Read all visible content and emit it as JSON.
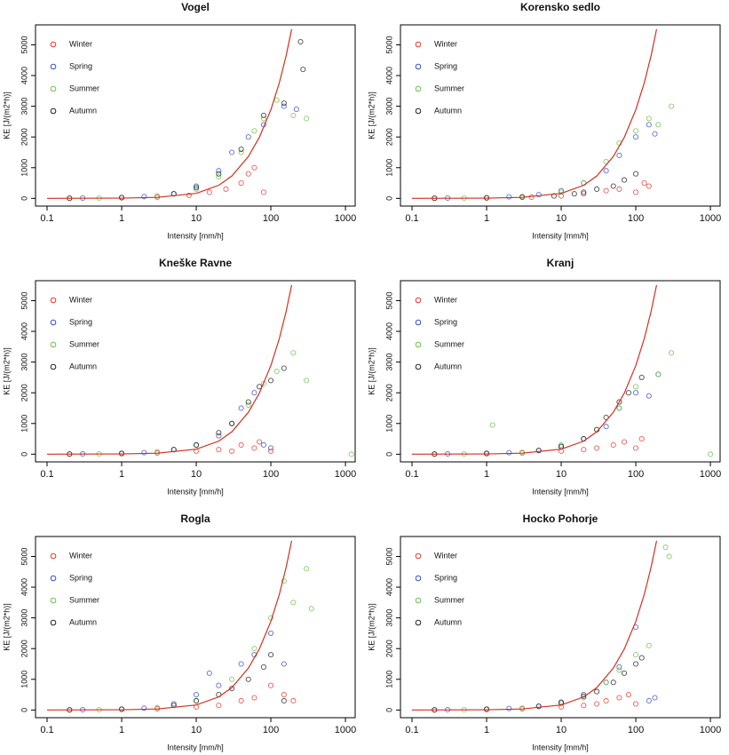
{
  "chart_data": [
    {
      "type": "scatter",
      "title": "Vogel",
      "xlabel": "Intensity [mm/h]",
      "ylabel": "KE [J/(m2*h)]",
      "log_x": true,
      "legend": "topleft",
      "xlim": [
        0.07,
        1350
      ],
      "ylim": [
        -250,
        5650
      ],
      "xticks": [
        0.1,
        1,
        10,
        100,
        1000
      ],
      "yticks": [
        0,
        1000,
        2000,
        3000,
        4000,
        5000
      ],
      "series": [
        {
          "name": "Winter",
          "color": "#e03a2c",
          "x": [
            0.2,
            1,
            3,
            8,
            15,
            25,
            40,
            50,
            60,
            80
          ],
          "values": [
            5,
            20,
            40,
            100,
            200,
            300,
            500,
            800,
            1000,
            200
          ]
        },
        {
          "name": "Spring",
          "color": "#3a4fc0",
          "x": [
            0.3,
            2,
            5,
            10,
            20,
            30,
            50,
            80,
            150,
            220
          ],
          "values": [
            10,
            60,
            150,
            400,
            900,
            1500,
            2000,
            2400,
            3000,
            2900
          ]
        },
        {
          "name": "Summer",
          "color": "#6cc24a",
          "x": [
            0.5,
            3,
            10,
            20,
            40,
            60,
            80,
            120,
            200,
            300
          ],
          "values": [
            10,
            80,
            300,
            700,
            1500,
            2200,
            2600,
            3200,
            2700,
            2600
          ]
        },
        {
          "name": "Autumn",
          "color": "#222222",
          "x": [
            0.2,
            1,
            5,
            10,
            20,
            40,
            80,
            150,
            250,
            270
          ],
          "values": [
            5,
            30,
            150,
            350,
            800,
            1600,
            2700,
            3100,
            5100,
            4200
          ]
        }
      ],
      "fit": {
        "color": "#d03020",
        "x": [
          0.1,
          1,
          3,
          10,
          20,
          30,
          50,
          70,
          100,
          130,
          160,
          190
        ],
        "values": [
          1,
          9,
          33,
          163,
          426,
          730,
          1364,
          1986,
          2886,
          3766,
          4640,
          5510
        ]
      }
    },
    {
      "type": "scatter",
      "title": "Korensko sedlo",
      "xlabel": "Intensity [mm/h]",
      "ylabel": "KE [J/(m2*h)]",
      "log_x": true,
      "legend": "topleft",
      "xlim": [
        0.07,
        1350
      ],
      "ylim": [
        -250,
        5650
      ],
      "xticks": [
        0.1,
        1,
        10,
        100,
        1000
      ],
      "yticks": [
        0,
        1000,
        2000,
        3000,
        4000,
        5000
      ],
      "series": [
        {
          "name": "Winter",
          "color": "#e03a2c",
          "x": [
            0.2,
            1,
            4,
            10,
            20,
            40,
            60,
            100,
            130,
            150
          ],
          "values": [
            5,
            15,
            40,
            80,
            150,
            250,
            300,
            200,
            500,
            400
          ]
        },
        {
          "name": "Spring",
          "color": "#3a4fc0",
          "x": [
            0.3,
            2,
            5,
            10,
            20,
            40,
            60,
            100,
            150,
            180
          ],
          "values": [
            10,
            50,
            120,
            250,
            500,
            900,
            1400,
            2000,
            2400,
            2100
          ]
        },
        {
          "name": "Summer",
          "color": "#6cc24a",
          "x": [
            0.5,
            3,
            10,
            20,
            40,
            60,
            100,
            150,
            200,
            300
          ],
          "values": [
            10,
            60,
            200,
            500,
            1200,
            1800,
            2200,
            2600,
            2400,
            3000
          ]
        },
        {
          "name": "Autumn",
          "color": "#222222",
          "x": [
            0.2,
            1,
            3,
            8,
            15,
            20,
            30,
            50,
            70,
            100
          ],
          "values": [
            5,
            20,
            40,
            80,
            150,
            200,
            300,
            400,
            600,
            800
          ]
        }
      ],
      "fit": {
        "color": "#d03020",
        "x": [
          0.1,
          1,
          3,
          10,
          20,
          30,
          50,
          70,
          100,
          130,
          160,
          190
        ],
        "values": [
          1,
          9,
          33,
          163,
          426,
          730,
          1364,
          1986,
          2886,
          3766,
          4640,
          5510
        ]
      }
    },
    {
      "type": "scatter",
      "title": "Kneške Ravne",
      "xlabel": "Intensity [mm/h]",
      "ylabel": "KE [J/(m2*h)]",
      "log_x": true,
      "legend": "topleft",
      "xlim": [
        0.07,
        1350
      ],
      "ylim": [
        -250,
        5650
      ],
      "xticks": [
        0.1,
        1,
        10,
        100,
        1000
      ],
      "yticks": [
        0,
        1000,
        2000,
        3000,
        4000,
        5000
      ],
      "series": [
        {
          "name": "Winter",
          "color": "#e03a2c",
          "x": [
            0.2,
            1,
            3,
            10,
            20,
            30,
            40,
            60,
            70,
            100
          ],
          "values": [
            5,
            15,
            40,
            100,
            150,
            100,
            300,
            200,
            400,
            100
          ]
        },
        {
          "name": "Spring",
          "color": "#3a4fc0",
          "x": [
            0.3,
            2,
            5,
            10,
            20,
            30,
            40,
            60,
            80,
            100
          ],
          "values": [
            10,
            50,
            150,
            300,
            600,
            1000,
            1500,
            2000,
            300,
            200
          ]
        },
        {
          "name": "Summer",
          "color": "#6cc24a",
          "x": [
            0.5,
            3,
            10,
            30,
            50,
            80,
            120,
            200,
            300,
            1200
          ],
          "values": [
            10,
            80,
            300,
            1000,
            1600,
            2300,
            2700,
            3300,
            2400,
            0
          ]
        },
        {
          "name": "Autumn",
          "color": "#222222",
          "x": [
            0.2,
            1,
            5,
            10,
            20,
            30,
            50,
            70,
            100,
            150
          ],
          "values": [
            5,
            30,
            150,
            300,
            700,
            1000,
            1700,
            2200,
            2400,
            2800
          ]
        }
      ],
      "fit": {
        "color": "#d03020",
        "x": [
          0.1,
          1,
          3,
          10,
          20,
          30,
          50,
          70,
          100,
          130,
          160,
          190
        ],
        "values": [
          1,
          9,
          33,
          163,
          426,
          730,
          1364,
          1986,
          2886,
          3766,
          4640,
          5510
        ]
      }
    },
    {
      "type": "scatter",
      "title": "Kranj",
      "xlabel": "Intensity [mm/h]",
      "ylabel": "KE [J/(m2*h)]",
      "log_x": true,
      "legend": "topleft",
      "xlim": [
        0.07,
        1350
      ],
      "ylim": [
        -250,
        5650
      ],
      "xticks": [
        0.1,
        1,
        10,
        100,
        1000
      ],
      "yticks": [
        0,
        1000,
        2000,
        3000,
        4000,
        5000
      ],
      "series": [
        {
          "name": "Winter",
          "color": "#e03a2c",
          "x": [
            0.2,
            1,
            3,
            10,
            20,
            30,
            50,
            70,
            100,
            120
          ],
          "values": [
            5,
            15,
            40,
            100,
            150,
            200,
            300,
            400,
            200,
            500
          ]
        },
        {
          "name": "Spring",
          "color": "#3a4fc0",
          "x": [
            0.3,
            2,
            5,
            10,
            20,
            40,
            60,
            100,
            150,
            200
          ],
          "values": [
            10,
            50,
            120,
            250,
            500,
            900,
            1500,
            2000,
            1900,
            2600
          ]
        },
        {
          "name": "Summer",
          "color": "#6cc24a",
          "x": [
            0.5,
            1.2,
            3,
            10,
            30,
            60,
            100,
            200,
            300,
            1000
          ],
          "values": [
            10,
            950,
            60,
            300,
            800,
            1500,
            2200,
            2600,
            3300,
            0
          ]
        },
        {
          "name": "Autumn",
          "color": "#222222",
          "x": [
            0.2,
            1,
            5,
            10,
            20,
            30,
            40,
            60,
            80,
            120
          ],
          "values": [
            5,
            30,
            120,
            250,
            500,
            800,
            1200,
            1700,
            2000,
            2500
          ]
        }
      ],
      "fit": {
        "color": "#d03020",
        "x": [
          0.1,
          1,
          3,
          10,
          20,
          30,
          50,
          70,
          100,
          130,
          160,
          190
        ],
        "values": [
          1,
          9,
          33,
          163,
          426,
          730,
          1364,
          1986,
          2886,
          3766,
          4640,
          5510
        ]
      }
    },
    {
      "type": "scatter",
      "title": "Rogla",
      "xlabel": "Intensity [mm/h]",
      "ylabel": "KE [J/(m2*h)]",
      "log_x": true,
      "legend": "topleft",
      "xlim": [
        0.07,
        1350
      ],
      "ylim": [
        -250,
        5650
      ],
      "xticks": [
        0.1,
        1,
        10,
        100,
        1000
      ],
      "yticks": [
        0,
        1000,
        2000,
        3000,
        4000,
        5000
      ],
      "series": [
        {
          "name": "Winter",
          "color": "#e03a2c",
          "x": [
            0.2,
            1,
            3,
            10,
            20,
            40,
            60,
            100,
            150,
            200
          ],
          "values": [
            5,
            20,
            40,
            100,
            150,
            300,
            400,
            800,
            500,
            300
          ]
        },
        {
          "name": "Spring",
          "color": "#3a4fc0",
          "x": [
            0.3,
            2,
            5,
            10,
            15,
            20,
            40,
            60,
            100,
            150
          ],
          "values": [
            10,
            60,
            200,
            500,
            1200,
            800,
            1500,
            1800,
            2500,
            1500
          ]
        },
        {
          "name": "Summer",
          "color": "#6cc24a",
          "x": [
            0.5,
            3,
            10,
            30,
            60,
            100,
            150,
            200,
            300,
            350
          ],
          "values": [
            10,
            80,
            300,
            1000,
            2000,
            3000,
            4200,
            3500,
            4600,
            3300
          ]
        },
        {
          "name": "Autumn",
          "color": "#222222",
          "x": [
            0.2,
            1,
            5,
            10,
            20,
            30,
            50,
            80,
            100,
            150
          ],
          "values": [
            5,
            30,
            150,
            300,
            500,
            700,
            1000,
            1400,
            1800,
            300
          ]
        }
      ],
      "fit": {
        "color": "#d03020",
        "x": [
          0.1,
          1,
          3,
          10,
          20,
          30,
          50,
          70,
          100,
          130,
          160,
          190
        ],
        "values": [
          1,
          9,
          33,
          163,
          426,
          730,
          1364,
          1986,
          2886,
          3766,
          4640,
          5510
        ]
      }
    },
    {
      "type": "scatter",
      "title": "Hocko Pohorje",
      "xlabel": "Intensity [mm/h]",
      "ylabel": "KE [J/(m2*h)]",
      "log_x": true,
      "legend": "topleft",
      "xlim": [
        0.07,
        1350
      ],
      "ylim": [
        -250,
        5650
      ],
      "xticks": [
        0.1,
        1,
        10,
        100,
        1000
      ],
      "yticks": [
        0,
        1000,
        2000,
        3000,
        4000,
        5000
      ],
      "series": [
        {
          "name": "Winter",
          "color": "#e03a2c",
          "x": [
            0.2,
            1,
            3,
            10,
            20,
            30,
            40,
            60,
            80,
            100
          ],
          "values": [
            5,
            15,
            40,
            100,
            150,
            200,
            300,
            400,
            500,
            200
          ]
        },
        {
          "name": "Spring",
          "color": "#3a4fc0",
          "x": [
            0.3,
            2,
            5,
            10,
            20,
            40,
            60,
            100,
            150,
            180
          ],
          "values": [
            10,
            50,
            120,
            250,
            500,
            900,
            1400,
            2700,
            300,
            400
          ]
        },
        {
          "name": "Summer",
          "color": "#6cc24a",
          "x": [
            0.5,
            3,
            10,
            20,
            40,
            60,
            100,
            150,
            250,
            280
          ],
          "values": [
            10,
            60,
            200,
            400,
            900,
            1300,
            1800,
            2100,
            5300,
            5000
          ]
        },
        {
          "name": "Autumn",
          "color": "#222222",
          "x": [
            0.2,
            1,
            5,
            10,
            20,
            30,
            50,
            70,
            100,
            120
          ],
          "values": [
            5,
            30,
            120,
            250,
            450,
            600,
            900,
            1200,
            1500,
            1700
          ]
        }
      ],
      "fit": {
        "color": "#d03020",
        "x": [
          0.1,
          1,
          3,
          10,
          20,
          30,
          50,
          70,
          100,
          130,
          160,
          190
        ],
        "values": [
          1,
          9,
          33,
          163,
          426,
          730,
          1364,
          1986,
          2886,
          3766,
          4640,
          5510
        ]
      }
    }
  ]
}
